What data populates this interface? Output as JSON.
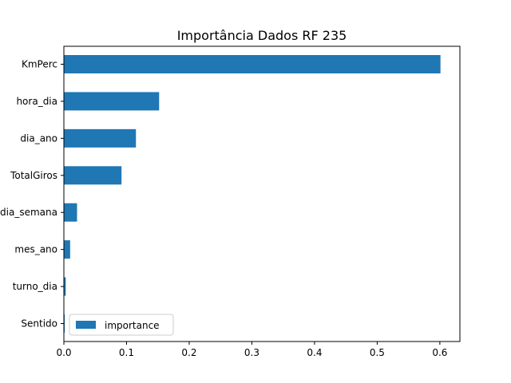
{
  "chart_data": {
    "type": "bar",
    "orientation": "horizontal",
    "title": "Importância Dados RF 235",
    "xlabel": "",
    "ylabel": "",
    "categories": [
      "KmPerc",
      "hora_dia",
      "dia_ano",
      "TotalGiros",
      "dia_semana",
      "mes_ano",
      "turno_dia",
      "Sentido"
    ],
    "series": [
      {
        "name": "importance",
        "values": [
          0.601,
          0.152,
          0.115,
          0.092,
          0.021,
          0.01,
          0.003,
          0.001
        ]
      }
    ],
    "xlim": [
      0,
      0.632
    ],
    "xticks": [
      0.0,
      0.1,
      0.2,
      0.3,
      0.4,
      0.5,
      0.6
    ],
    "xtick_labels": [
      "0.0",
      "0.1",
      "0.2",
      "0.3",
      "0.4",
      "0.5",
      "0.6"
    ],
    "grid": false,
    "legend_position": "lower-left",
    "colors": {
      "bar": "#1f77b4",
      "axis": "#000000",
      "background": "#ffffff"
    }
  }
}
